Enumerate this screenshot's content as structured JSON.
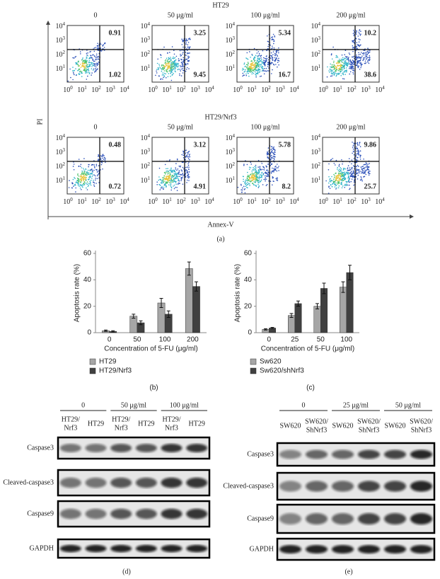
{
  "flow": {
    "rows": [
      {
        "title": "HT29",
        "panels": [
          {
            "label": "0",
            "upper_right": 0.91,
            "lower_right": 1.02
          },
          {
            "label": "50 μg/ml",
            "upper_right": 3.25,
            "lower_right": 9.45
          },
          {
            "label": "100 μg/ml",
            "upper_right": 5.34,
            "lower_right": 16.7
          },
          {
            "label": "200 μg/ml",
            "upper_right": 10.2,
            "lower_right": 38.6
          }
        ]
      },
      {
        "title": "HT29/Nrf3",
        "panels": [
          {
            "label": "0",
            "upper_right": 0.48,
            "lower_right": 0.72
          },
          {
            "label": "50 μg/ml",
            "upper_right": 3.12,
            "lower_right": 4.91
          },
          {
            "label": "100 μg/ml",
            "upper_right": 5.78,
            "lower_right": 8.2
          },
          {
            "label": "200 μg/ml",
            "upper_right": 9.86,
            "lower_right": 25.7
          }
        ]
      }
    ],
    "tick_base": "10",
    "tick_exponents": [
      "0",
      "1",
      "2",
      "3",
      "4"
    ],
    "y_label": "PI",
    "x_label": "Annex-V",
    "caption": "(a)"
  },
  "chart_data": [
    {
      "type": "bar",
      "categories": [
        "0",
        "50",
        "100",
        "200"
      ],
      "series": [
        {
          "name": "HT29",
          "color": "#a6a6a6",
          "values": [
            1.5,
            12.5,
            22.5,
            48.5
          ],
          "errors": [
            0.5,
            1.5,
            3.5,
            5
          ]
        },
        {
          "name": "HT29/Nrf3",
          "color": "#404040",
          "values": [
            1,
            7.5,
            14,
            35
          ],
          "errors": [
            0.5,
            1.5,
            2.5,
            3.5
          ]
        }
      ],
      "ylim": [
        0,
        60
      ],
      "yticks": [
        0,
        20,
        40,
        60
      ],
      "x_label": "Concentration of 5-FU (μg/ml)",
      "y_label": "Apoptosis rate (%)",
      "caption": "(b)"
    },
    {
      "type": "bar",
      "categories": [
        "0",
        "25",
        "50",
        "100"
      ],
      "series": [
        {
          "name": "Sw620",
          "color": "#a6a6a6",
          "values": [
            2.5,
            13,
            20,
            34.5
          ],
          "errors": [
            0.5,
            1.5,
            2,
            4
          ]
        },
        {
          "name": "Sw620/shNrf3",
          "color": "#404040",
          "values": [
            3.5,
            22,
            33.5,
            45.5
          ],
          "errors": [
            0.5,
            2,
            4,
            5.5
          ]
        }
      ],
      "ylim": [
        0,
        60
      ],
      "yticks": [
        0,
        20,
        40,
        60
      ],
      "x_label": "Concentration of 5-FU (μg/ml)",
      "y_label": "Apoptosis rate (%)",
      "caption": "(c)"
    }
  ],
  "blots": [
    {
      "groups": [
        "0",
        "50 μg/ml",
        "100 μg/ml"
      ],
      "lanes": [
        [
          "HT29/",
          "Nrf3"
        ],
        [
          "HT29"
        ],
        [
          "HT29/",
          "Nrf3"
        ],
        [
          "HT29"
        ],
        [
          "HT29/",
          "Nrf3"
        ],
        [
          "HT29"
        ]
      ],
      "proteins": [
        "Caspase3",
        "Cleaved-caspase3",
        "Caspase9",
        "GAPDH"
      ],
      "caption": "(d)"
    },
    {
      "groups": [
        "0",
        "25 μg/ml",
        "50 μg/ml"
      ],
      "lanes": [
        [
          "SW620"
        ],
        [
          "SW620/",
          "ShNrf3"
        ],
        [
          "SW620"
        ],
        [
          "SW620/",
          "ShNrf3"
        ],
        [
          "SW620"
        ],
        [
          "SW620/",
          "ShNrf3"
        ]
      ],
      "proteins": [
        "Caspase3",
        "Cleaved-caspase3",
        "Caspase9",
        "GAPDH"
      ],
      "caption": "(e)"
    }
  ]
}
